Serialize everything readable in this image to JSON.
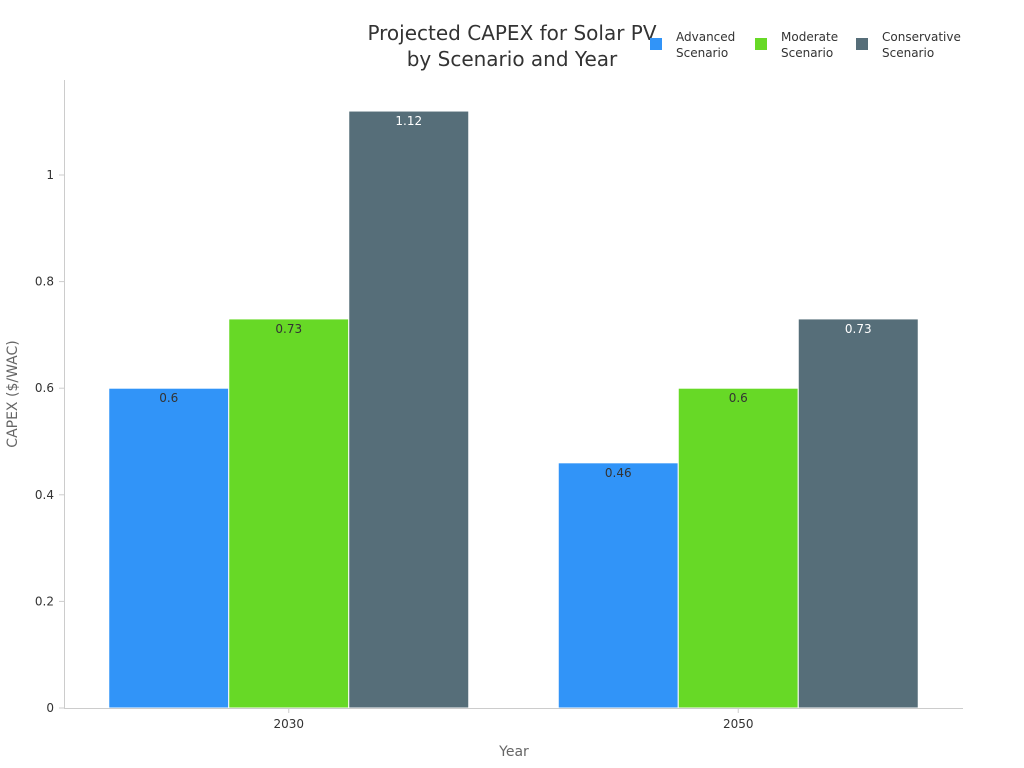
{
  "chart_data": {
    "type": "bar",
    "title_lines": [
      "Projected CAPEX for Solar PV",
      "by Scenario and Year"
    ],
    "xlabel": "Year",
    "ylabel": "CAPEX ($/WAC)",
    "categories": [
      "2030",
      "2050"
    ],
    "ylim": [
      0,
      1.2
    ],
    "yticks": [
      "0",
      "0.2",
      "0.4",
      "0.6",
      "0.8",
      "1"
    ],
    "legend_position": "top-right",
    "series": [
      {
        "name_lines": [
          "Advanced",
          "Scenario"
        ],
        "color": "#3194F8",
        "label_color": "#333333",
        "values": [
          0.6,
          0.46
        ],
        "labels": [
          "0.6",
          "0.46"
        ]
      },
      {
        "name_lines": [
          "Moderate",
          "Scenario"
        ],
        "color": "#67D926",
        "label_color": "#333333",
        "values": [
          0.73,
          0.6
        ],
        "labels": [
          "0.73",
          "0.6"
        ]
      },
      {
        "name_lines": [
          "Conservative",
          "Scenario"
        ],
        "color": "#566E79",
        "label_color": "#ffffff",
        "values": [
          1.12,
          0.73
        ],
        "labels": [
          "1.12",
          "0.73"
        ]
      }
    ]
  }
}
